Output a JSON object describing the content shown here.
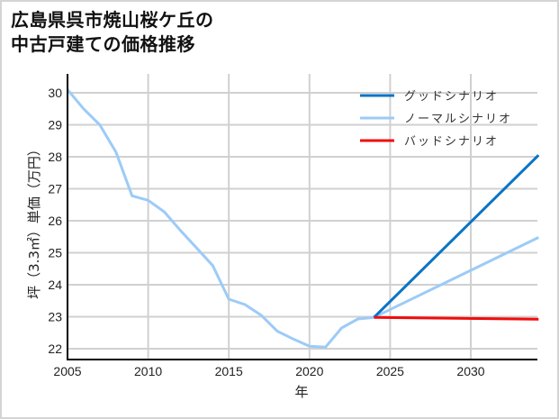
{
  "title": {
    "line1": "広島県呉市焼山桜ケ丘の",
    "line2": "中古戸建ての価格推移"
  },
  "chart_data": {
    "type": "line",
    "title": "広島県呉市焼山桜ケ丘の中古戸建ての価格推移",
    "xlabel": "年",
    "ylabel": "坪（3.3㎡）単価（万円）",
    "xlim": [
      2005,
      2034.2
    ],
    "ylim": [
      21.6,
      30.6
    ],
    "xticks": [
      2005,
      2010,
      2015,
      2020,
      2025,
      2030
    ],
    "yticks": [
      22,
      23,
      24,
      25,
      26,
      27,
      28,
      29,
      30
    ],
    "grid": true,
    "legend_position": "upper right",
    "series": [
      {
        "name": "グッドシナリオ",
        "color": "#0a74c4",
        "x": [
          2024,
          2034.2
        ],
        "values": [
          22.98,
          28.05
        ]
      },
      {
        "name": "ノーマルシナリオ",
        "color": "#9ccbf7",
        "x": [
          2005,
          2006,
          2007,
          2008,
          2009,
          2010,
          2011,
          2012,
          2013,
          2014,
          2015,
          2016,
          2017,
          2018,
          2019,
          2020,
          2021,
          2022,
          2023,
          2024,
          2034.2
        ],
        "values": [
          30.1,
          29.5,
          29.0,
          28.15,
          26.78,
          26.64,
          26.28,
          25.7,
          25.15,
          24.6,
          23.55,
          23.38,
          23.05,
          22.55,
          22.3,
          22.08,
          22.05,
          22.65,
          22.93,
          22.98,
          25.48
        ]
      },
      {
        "name": "バッドシナリオ",
        "color": "#f20c0c",
        "x": [
          2024,
          2034.2
        ],
        "values": [
          22.98,
          22.92
        ]
      }
    ]
  }
}
